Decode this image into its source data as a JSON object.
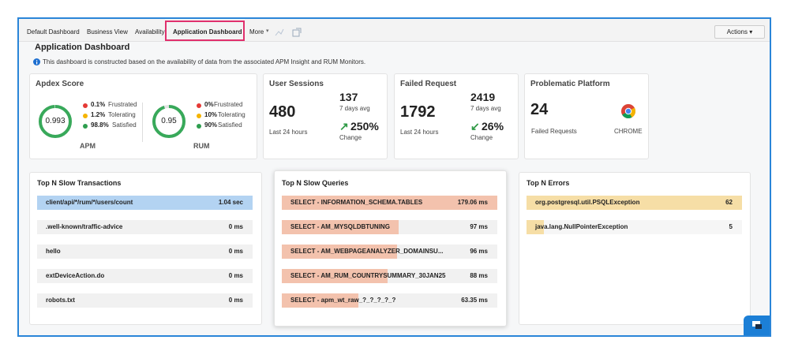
{
  "tabs": [
    "Default Dashboard",
    "Business View",
    "Availability",
    "Application Dashboard",
    "More"
  ],
  "actions": "Actions",
  "header": {
    "title": "Application Dashboard",
    "info": "This dashboard is constructed based on the availability of data from the associated APM Insight and RUM Monitors."
  },
  "apdex": {
    "title": "Apdex Score",
    "monitors": [
      {
        "name": "APM",
        "score": 0.993,
        "legend": [
          {
            "value": "0.1%",
            "label": "Frustrated",
            "color": "#e53935"
          },
          {
            "value": "1.2%",
            "label": "Tolerating",
            "color": "#f5b400"
          },
          {
            "value": "98.8%",
            "label": "Satisfied",
            "color": "#2e9e4f"
          }
        ]
      },
      {
        "name": "RUM",
        "score": 0.95,
        "legend": [
          {
            "value": "0%",
            "label": "Frustrated",
            "color": "#e53935"
          },
          {
            "value": "10%",
            "label": "Tolerating",
            "color": "#f5b400"
          },
          {
            "value": "90%",
            "label": "Satisfied",
            "color": "#2e9e4f"
          }
        ]
      }
    ]
  },
  "user_sessions": {
    "title": "User Sessions",
    "value": 480,
    "value_caption": "Last 24 hours",
    "avg": 137,
    "avg_caption": "7 days avg",
    "change": "250%",
    "change_caption": "Change"
  },
  "failed_request": {
    "title": "Failed Request",
    "value": 1792,
    "value_caption": "Last 24 hours",
    "avg": 2419,
    "avg_caption": "7 days avg",
    "change": "26%",
    "change_caption": "Change"
  },
  "problematic_platform": {
    "title": "Problematic Platform",
    "value": 24,
    "value_caption": "Failed Requests",
    "platform": "CHROME"
  },
  "panels": [
    {
      "title": "Top N Slow Transactions",
      "color": "#b3d3f2",
      "rows": [
        {
          "name": "client/api/*/rum/*/users/count",
          "value": 1040,
          "value_label": "1.04 sec"
        },
        {
          "name": ".well-known/traffic-advice",
          "value": 0,
          "value_label": "0 ms"
        },
        {
          "name": "hello",
          "value": 0,
          "value_label": "0 ms"
        },
        {
          "name": "extDeviceAction.do",
          "value": 0,
          "value_label": "0 ms"
        },
        {
          "name": "robots.txt",
          "value": 0,
          "value_label": "0 ms"
        }
      ]
    },
    {
      "title": "Top N Slow Queries",
      "color": "#f3c2ad",
      "rows": [
        {
          "name": "SELECT - INFORMATION_SCHEMA.TABLES",
          "value": 179.06,
          "value_label": "179.06 ms"
        },
        {
          "name": "SELECT - AM_MYSQLDBTUNING",
          "value": 97,
          "value_label": "97 ms"
        },
        {
          "name": "SELECT - AM_WEBPAGEANALYZER_DOMAINSU...",
          "value": 96,
          "value_label": "96 ms"
        },
        {
          "name": "SELECT - AM_RUM_COUNTRYSUMMARY_30JAN25",
          "value": 88,
          "value_label": "88 ms"
        },
        {
          "name": "SELECT - apm_wt_raw_?_?_?_?_?",
          "value": 63.35,
          "value_label": "63.35 ms"
        }
      ]
    },
    {
      "title": "Top N Errors",
      "color": "#f6dea6",
      "rows": [
        {
          "name": "org.postgresql.util.PSQLException",
          "value": 62
        },
        {
          "name": "java.lang.NullPointerException",
          "value": 5
        }
      ]
    }
  ]
}
